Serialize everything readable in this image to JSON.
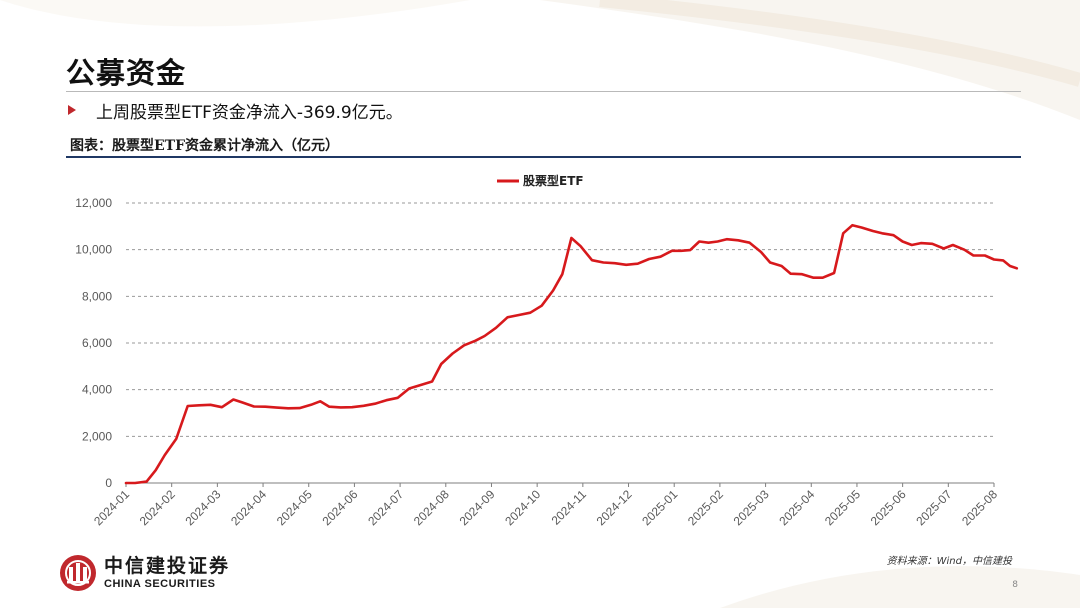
{
  "slide": {
    "title": "公募资金",
    "bullet": "上周股票型ETF资金净流入-369.9亿元。",
    "caption": "图表：股票型ETF资金累计净流入（亿元）",
    "source": "资料来源：Wind，中信建投",
    "page_number": "8",
    "accent_color": "#c0282d",
    "rule_color": "#1f3864"
  },
  "logo": {
    "name_cn": "中信建投证券",
    "name_en": "CHINA SECURITIES",
    "icon": "citic-logo-icon"
  },
  "chart_data": {
    "type": "line",
    "title": "",
    "xlabel": "",
    "ylabel": "",
    "ylim": [
      0,
      12000
    ],
    "y_ticks": [
      0,
      2000,
      4000,
      6000,
      8000,
      10000,
      12000
    ],
    "y_tick_labels": [
      "0",
      "2,000",
      "4,000",
      "6,000",
      "8,000",
      "10,000",
      "12,000"
    ],
    "x_tick_labels": [
      "2024-01",
      "2024-02",
      "2024-03",
      "2024-04",
      "2024-05",
      "2024-06",
      "2024-07",
      "2024-08",
      "2024-09",
      "2024-10",
      "2024-11",
      "2024-12",
      "2025-01",
      "2025-02",
      "2025-03",
      "2025-04",
      "2025-05",
      "2025-06",
      "2025-07",
      "2025-08"
    ],
    "grid": "horizontal dashed",
    "legend_position": "top-center",
    "series": [
      {
        "name": "股票型ETF",
        "color": "#d7191c",
        "points": [
          [
            0.0,
            0
          ],
          [
            0.2,
            0
          ],
          [
            0.45,
            60
          ],
          [
            0.65,
            550
          ],
          [
            0.85,
            1200
          ],
          [
            1.1,
            1900
          ],
          [
            1.35,
            3300
          ],
          [
            1.6,
            3330
          ],
          [
            1.85,
            3350
          ],
          [
            2.1,
            3250
          ],
          [
            2.35,
            3580
          ],
          [
            2.55,
            3450
          ],
          [
            2.8,
            3280
          ],
          [
            3.05,
            3270
          ],
          [
            3.3,
            3230
          ],
          [
            3.55,
            3200
          ],
          [
            3.8,
            3210
          ],
          [
            4.05,
            3350
          ],
          [
            4.25,
            3500
          ],
          [
            4.45,
            3270
          ],
          [
            4.7,
            3240
          ],
          [
            4.95,
            3250
          ],
          [
            5.2,
            3310
          ],
          [
            5.45,
            3400
          ],
          [
            5.7,
            3550
          ],
          [
            5.95,
            3650
          ],
          [
            6.2,
            4050
          ],
          [
            6.45,
            4200
          ],
          [
            6.7,
            4350
          ],
          [
            6.9,
            5100
          ],
          [
            7.15,
            5550
          ],
          [
            7.4,
            5900
          ],
          [
            7.65,
            6100
          ],
          [
            7.85,
            6300
          ],
          [
            8.1,
            6650
          ],
          [
            8.35,
            7100
          ],
          [
            8.6,
            7200
          ],
          [
            8.85,
            7300
          ],
          [
            9.1,
            7600
          ],
          [
            9.35,
            8250
          ],
          [
            9.55,
            8950
          ],
          [
            9.75,
            10500
          ],
          [
            9.95,
            10150
          ],
          [
            10.2,
            9550
          ],
          [
            10.45,
            9450
          ],
          [
            10.7,
            9420
          ],
          [
            10.95,
            9350
          ],
          [
            11.2,
            9400
          ],
          [
            11.45,
            9600
          ],
          [
            11.7,
            9700
          ],
          [
            11.95,
            9950
          ],
          [
            12.15,
            9950
          ],
          [
            12.35,
            9980
          ],
          [
            12.55,
            10350
          ],
          [
            12.75,
            10300
          ],
          [
            12.95,
            10350
          ],
          [
            13.15,
            10450
          ],
          [
            13.4,
            10400
          ],
          [
            13.65,
            10300
          ],
          [
            13.9,
            9900
          ],
          [
            14.1,
            9450
          ],
          [
            14.35,
            9300
          ],
          [
            14.55,
            8970
          ],
          [
            14.8,
            8950
          ],
          [
            15.05,
            8800
          ],
          [
            15.25,
            8800
          ],
          [
            15.5,
            9000
          ],
          [
            15.7,
            10700
          ],
          [
            15.9,
            11050
          ],
          [
            16.1,
            10950
          ],
          [
            16.35,
            10800
          ],
          [
            16.55,
            10700
          ],
          [
            16.8,
            10620
          ],
          [
            17.0,
            10350
          ],
          [
            17.2,
            10200
          ],
          [
            17.4,
            10280
          ],
          [
            17.65,
            10250
          ],
          [
            17.9,
            10050
          ],
          [
            18.1,
            10200
          ],
          [
            18.35,
            10000
          ],
          [
            18.55,
            9750
          ],
          [
            18.8,
            9750
          ],
          [
            19.0,
            9580
          ],
          [
            19.2,
            9540
          ],
          [
            19.35,
            9300
          ],
          [
            19.5,
            9200
          ]
        ]
      }
    ]
  }
}
